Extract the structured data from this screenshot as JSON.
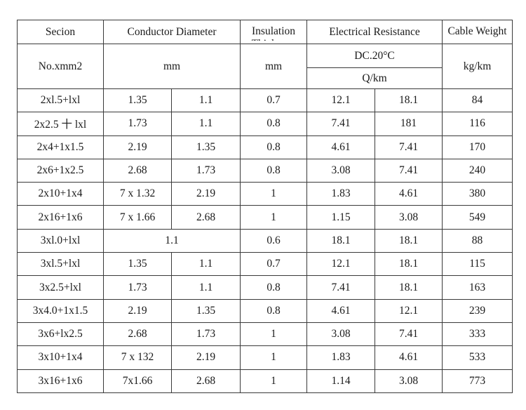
{
  "header": {
    "section": "Secion",
    "conductor_diameter": "Conductor Diameter",
    "insulation": "Insulation Thickness",
    "electrical_resistance": "Electrical Resistance",
    "cable": "Cable Weight",
    "no_xmm2": "No.xmm2",
    "mm_conductor": "mm",
    "mm_insulation": "mm",
    "dc_temp": "DC.20°C",
    "ohm_km": "Q/km",
    "kg_km": "kg/km"
  },
  "rows": [
    {
      "section": "2xl.5+lxl",
      "d1": "1.35",
      "d2": "1.1",
      "ins": "0.7",
      "r1": "12.1",
      "r2": "18.1",
      "wt": "84"
    },
    {
      "section": "2x2.5 十 lxl",
      "d1": "1.73",
      "d2": "1.1",
      "ins": "0.8",
      "r1": "7.41",
      "r2": "181",
      "wt": "116"
    },
    {
      "section": "2x4+1x1.5",
      "d1": "2.19",
      "d2": "1.35",
      "ins": "0.8",
      "r1": "4.61",
      "r2": "7.41",
      "wt": "170"
    },
    {
      "section": "2x6+1x2.5",
      "d1": "2.68",
      "d2": "1.73",
      "ins": "0.8",
      "r1": "3.08",
      "r2": "7.41",
      "wt": "240"
    },
    {
      "section": "2x10+1x4",
      "d1": "7 x 1.32",
      "d2": "2.19",
      "ins": "1",
      "r1": "1.83",
      "r2": "4.61",
      "wt": "380"
    },
    {
      "section": "2x16+1x6",
      "d1": "7 x 1.66",
      "d2": "2.68",
      "ins": "1",
      "r1": "1.15",
      "r2": "3.08",
      "wt": "549"
    },
    {
      "section": "3xl.0+lxl",
      "d_merged": "1.1",
      "ins": "0.6",
      "r1": "18.1",
      "r2": "18.1",
      "wt": "88"
    },
    {
      "section": "3xl.5+lxl",
      "d1": "1.35",
      "d2": "1.1",
      "ins": "0.7",
      "r1": "12.1",
      "r2": "18.1",
      "wt": "115"
    },
    {
      "section": "3x2.5+lxl",
      "d1": "1.73",
      "d2": "1.1",
      "ins": "0.8",
      "r1": "7.41",
      "r2": "18.1",
      "wt": "163"
    },
    {
      "section": "3x4.0+1x1.5",
      "d1": "2.19",
      "d2": "1.35",
      "ins": "0.8",
      "r1": "4.61",
      "r2": "12.1",
      "wt": "239"
    },
    {
      "section": "3x6+lx2.5",
      "d1": "2.68",
      "d2": "1.73",
      "ins": "1",
      "r1": "3.08",
      "r2": "7.41",
      "wt": "333"
    },
    {
      "section": "3x10+1x4",
      "d1": "7 x 132",
      "d2": "2.19",
      "ins": "1",
      "r1": "1.83",
      "r2": "4.61",
      "wt": "533"
    },
    {
      "section": "3x16+1x6",
      "d1": "7x1.66",
      "d2": "2.68",
      "ins": "1",
      "r1": "1.14",
      "r2": "3.08",
      "wt": "773"
    }
  ]
}
